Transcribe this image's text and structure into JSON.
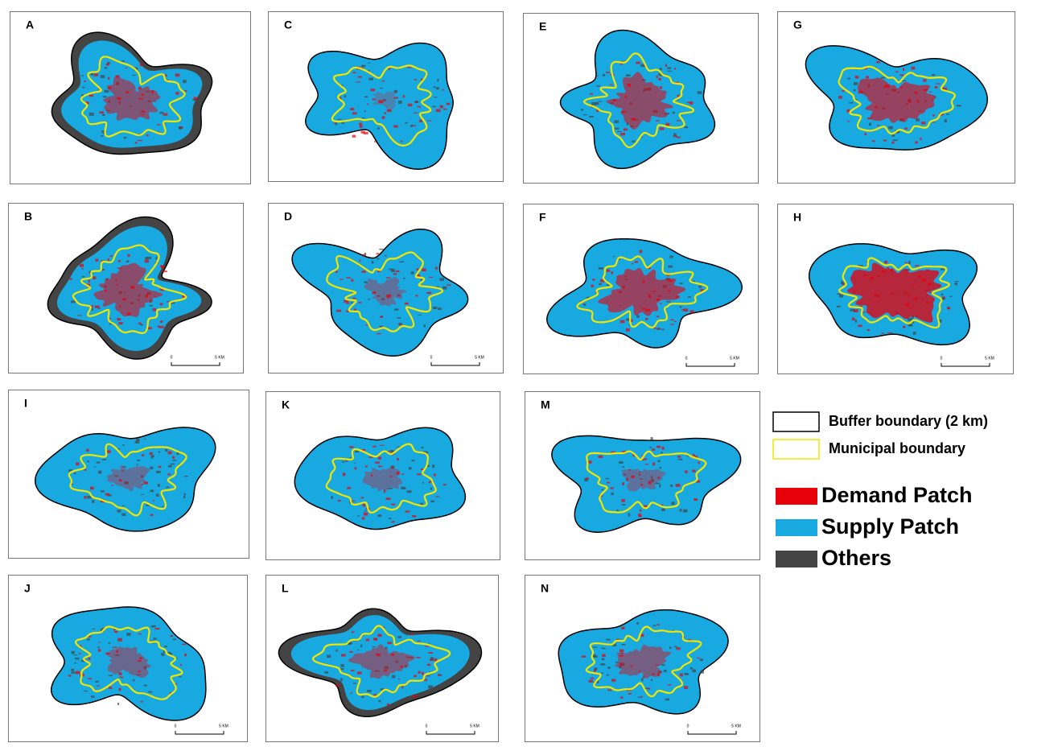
{
  "panels": [
    {
      "label": "A"
    },
    {
      "label": "B",
      "scale": [
        "0",
        "5 KM"
      ]
    },
    {
      "label": "C"
    },
    {
      "label": "D",
      "scale": [
        "0",
        "5 KM"
      ]
    },
    {
      "label": "E"
    },
    {
      "label": "F",
      "scale": [
        "0",
        "5 KM"
      ]
    },
    {
      "label": "G"
    },
    {
      "label": "H",
      "scale": [
        "0",
        "5 KM"
      ]
    },
    {
      "label": "I"
    },
    {
      "label": "J",
      "scale": [
        "0",
        "5 KM"
      ]
    },
    {
      "label": "K"
    },
    {
      "label": "L",
      "scale": [
        "0",
        "5 KM"
      ]
    },
    {
      "label": "M"
    },
    {
      "label": "N",
      "scale": [
        "0",
        "5 KM"
      ]
    }
  ],
  "legend": {
    "boundaries": [
      {
        "label": "Buffer boundary (2 km)",
        "color": "#000000"
      },
      {
        "label": "Municipal boundary",
        "color": "#f2e600"
      }
    ],
    "patches": [
      {
        "label": "Demand Patch",
        "color": "#e8000b"
      },
      {
        "label": "Supply Patch",
        "color": "#19a9e1"
      },
      {
        "label": "Others",
        "color": "#444444"
      }
    ]
  }
}
